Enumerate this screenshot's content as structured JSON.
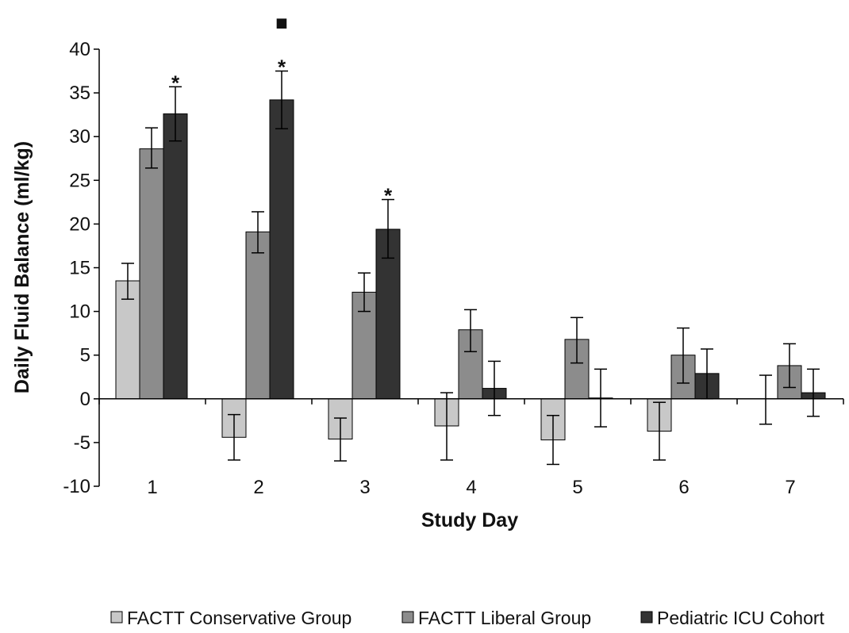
{
  "chart_data": {
    "type": "bar",
    "title": "",
    "xlabel": "Study Day",
    "ylabel": "Daily Fluid Balance (ml/kg)",
    "categories": [
      "1",
      "2",
      "3",
      "4",
      "5",
      "6",
      "7"
    ],
    "ylim": [
      -10,
      40
    ],
    "yticks": [
      40,
      35,
      30,
      25,
      20,
      15,
      10,
      5,
      0,
      -5,
      -10
    ],
    "ytick_labels": [
      "40",
      "35",
      "30",
      "25",
      "20",
      "15",
      "10",
      "5",
      "0",
      "-5",
      "-10"
    ],
    "grid": false,
    "legend_position": "bottom",
    "series": [
      {
        "name": "FACTT Conservative Group",
        "color": "#c8c8c8",
        "values": [
          13.5,
          -4.4,
          -4.6,
          -3.1,
          -4.7,
          -3.7,
          0
        ],
        "err_low": [
          11.4,
          -7.0,
          -7.1,
          -7.0,
          -7.5,
          -7.0,
          -2.9
        ],
        "err_high": [
          15.5,
          -1.8,
          -2.2,
          0.7,
          -1.9,
          -0.4,
          2.7
        ]
      },
      {
        "name": "FACTT Liberal Group",
        "color": "#8c8c8c",
        "values": [
          28.6,
          19.1,
          12.2,
          7.9,
          6.8,
          5.0,
          3.8
        ],
        "err_low": [
          26.4,
          16.7,
          10.0,
          5.4,
          4.1,
          1.8,
          1.3
        ],
        "err_high": [
          31.0,
          21.4,
          14.4,
          10.2,
          9.3,
          8.1,
          6.3
        ]
      },
      {
        "name": "Pediatric ICU Cohort",
        "color": "#333333",
        "values": [
          32.6,
          34.2,
          19.4,
          1.2,
          0.1,
          2.9,
          0.7
        ],
        "err_low": [
          29.5,
          30.9,
          16.1,
          -1.9,
          -3.2,
          0.0,
          -2.0
        ],
        "err_high": [
          35.7,
          37.5,
          22.8,
          4.3,
          3.4,
          5.7,
          3.4
        ]
      }
    ],
    "annotations": [
      {
        "text": "*",
        "category": "1",
        "series": "Pediatric ICU Cohort"
      },
      {
        "text": "*",
        "category": "2",
        "series": "Pediatric ICU Cohort"
      },
      {
        "text": "■",
        "category": "2",
        "series": "Pediatric ICU Cohort"
      },
      {
        "text": "*",
        "category": "3",
        "series": "Pediatric ICU Cohort"
      }
    ]
  }
}
